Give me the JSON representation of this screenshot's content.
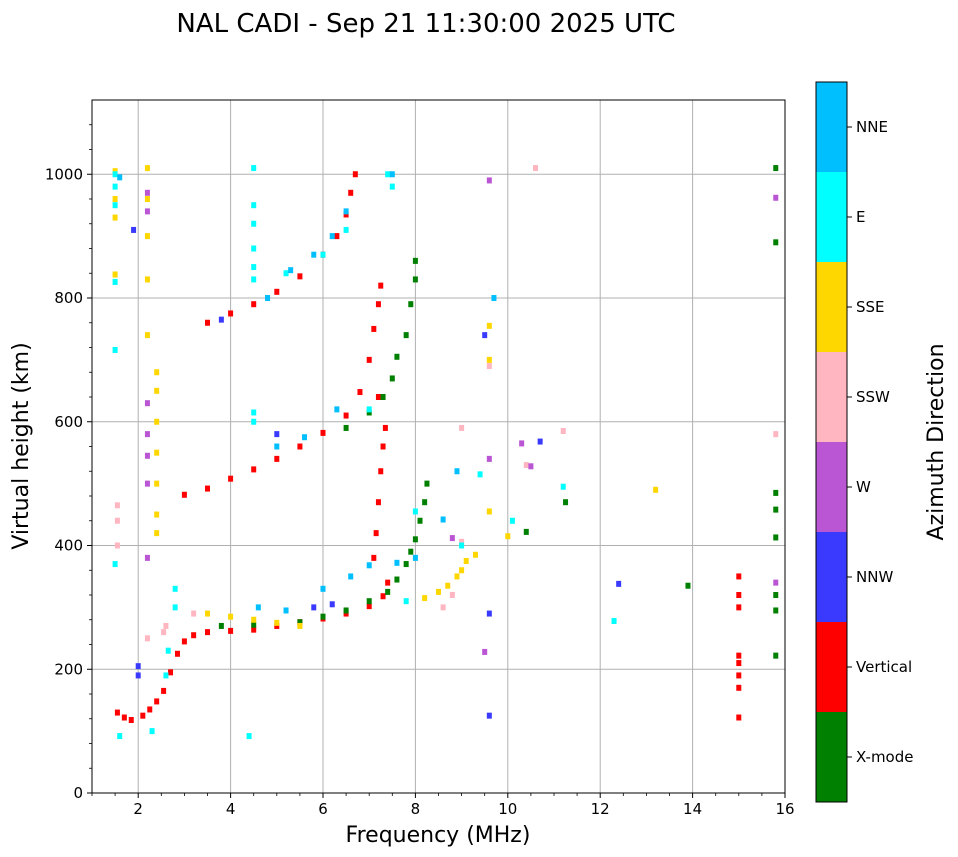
{
  "chart_data": {
    "type": "scatter",
    "title": "NAL CADI - Sep 21 11:30:00 2025 UTC",
    "xlabel": "Frequency (MHz)",
    "ylabel": "Virtual height (km)",
    "xlim": [
      1,
      16
    ],
    "ylim": [
      0,
      1120
    ],
    "x_ticks": [
      2,
      4,
      6,
      8,
      10,
      12,
      14,
      16
    ],
    "y_ticks": [
      0,
      200,
      400,
      600,
      800,
      1000
    ],
    "grid": true,
    "colorbar": {
      "title": "Azimuth Direction",
      "categories": [
        {
          "name": "NNE",
          "color": "#00bfff"
        },
        {
          "name": "E",
          "color": "#00ffff"
        },
        {
          "name": "SSE",
          "color": "#ffd700"
        },
        {
          "name": "SSW",
          "color": "#ffb6c1"
        },
        {
          "name": "W",
          "color": "#ba55d3"
        },
        {
          "name": "NNW",
          "color": "#3a3aff"
        },
        {
          "name": "Vertical",
          "color": "#ff0000"
        },
        {
          "name": "X-mode",
          "color": "#008000"
        }
      ]
    },
    "series": [
      {
        "name": "Vertical",
        "color": "#ff0000",
        "points": [
          [
            1.55,
            130
          ],
          [
            1.7,
            122
          ],
          [
            1.85,
            118
          ],
          [
            2.1,
            125
          ],
          [
            2.25,
            135
          ],
          [
            2.4,
            148
          ],
          [
            2.55,
            165
          ],
          [
            2.7,
            195
          ],
          [
            2.85,
            225
          ],
          [
            3.0,
            245
          ],
          [
            3.2,
            255
          ],
          [
            3.5,
            260
          ],
          [
            4.0,
            262
          ],
          [
            4.5,
            264
          ],
          [
            5.0,
            270
          ],
          [
            5.5,
            276
          ],
          [
            6.0,
            282
          ],
          [
            6.5,
            290
          ],
          [
            7.0,
            302
          ],
          [
            7.3,
            318
          ],
          [
            7.4,
            340
          ],
          [
            3.0,
            482
          ],
          [
            3.5,
            492
          ],
          [
            4.0,
            508
          ],
          [
            4.5,
            523
          ],
          [
            5.0,
            540
          ],
          [
            5.5,
            560
          ],
          [
            6.0,
            582
          ],
          [
            6.5,
            610
          ],
          [
            6.8,
            648
          ],
          [
            7.0,
            700
          ],
          [
            7.1,
            750
          ],
          [
            7.2,
            790
          ],
          [
            7.25,
            820
          ],
          [
            3.5,
            760
          ],
          [
            4.0,
            775
          ],
          [
            4.5,
            790
          ],
          [
            5.0,
            810
          ],
          [
            5.5,
            835
          ],
          [
            6.0,
            870
          ],
          [
            6.3,
            900
          ],
          [
            6.5,
            935
          ],
          [
            6.6,
            970
          ],
          [
            6.7,
            1000
          ],
          [
            7.1,
            380
          ],
          [
            7.15,
            420
          ],
          [
            7.2,
            470
          ],
          [
            7.25,
            520
          ],
          [
            7.3,
            560
          ],
          [
            7.35,
            590
          ],
          [
            7.2,
            640
          ],
          [
            15.0,
            320
          ],
          [
            15.0,
            300
          ],
          [
            15.0,
            350
          ],
          [
            15.0,
            210
          ],
          [
            15.0,
            190
          ],
          [
            15.0,
            170
          ],
          [
            15.0,
            222
          ],
          [
            15.0,
            122
          ]
        ]
      },
      {
        "name": "X-mode",
        "color": "#008000",
        "points": [
          [
            3.8,
            270
          ],
          [
            4.5,
            272
          ],
          [
            5.5,
            276
          ],
          [
            6.0,
            285
          ],
          [
            6.5,
            295
          ],
          [
            7.0,
            310
          ],
          [
            7.4,
            325
          ],
          [
            7.6,
            345
          ],
          [
            7.8,
            370
          ],
          [
            7.9,
            390
          ],
          [
            8.0,
            410
          ],
          [
            8.1,
            440
          ],
          [
            8.2,
            470
          ],
          [
            8.25,
            500
          ],
          [
            6.5,
            590
          ],
          [
            7.0,
            615
          ],
          [
            7.3,
            640
          ],
          [
            7.5,
            670
          ],
          [
            7.6,
            705
          ],
          [
            7.8,
            740
          ],
          [
            7.9,
            790
          ],
          [
            8.0,
            830
          ],
          [
            8.0,
            860
          ],
          [
            15.8,
            1010
          ],
          [
            15.8,
            890
          ],
          [
            15.8,
            485
          ],
          [
            15.8,
            458
          ],
          [
            15.8,
            413
          ],
          [
            15.8,
            320
          ],
          [
            15.8,
            295
          ],
          [
            15.8,
            222
          ],
          [
            13.9,
            335
          ],
          [
            11.25,
            470
          ],
          [
            10.4,
            422
          ]
        ]
      },
      {
        "name": "SSE",
        "color": "#ffd700",
        "points": [
          [
            1.5,
            1005
          ],
          [
            1.5,
            960
          ],
          [
            1.5,
            930
          ],
          [
            1.5,
            838
          ],
          [
            2.2,
            1010
          ],
          [
            2.2,
            960
          ],
          [
            2.2,
            900
          ],
          [
            2.2,
            830
          ],
          [
            2.2,
            740
          ],
          [
            2.4,
            680
          ],
          [
            2.4,
            650
          ],
          [
            2.4,
            600
          ],
          [
            2.4,
            550
          ],
          [
            2.4,
            500
          ],
          [
            2.4,
            450
          ],
          [
            2.4,
            420
          ],
          [
            3.5,
            290
          ],
          [
            4.0,
            285
          ],
          [
            4.5,
            280
          ],
          [
            5.0,
            275
          ],
          [
            5.5,
            270
          ],
          [
            8.2,
            315
          ],
          [
            8.5,
            325
          ],
          [
            8.7,
            335
          ],
          [
            8.9,
            350
          ],
          [
            9.0,
            360
          ],
          [
            9.1,
            375
          ],
          [
            9.3,
            385
          ],
          [
            9.6,
            455
          ],
          [
            9.6,
            700
          ],
          [
            9.6,
            755
          ],
          [
            13.2,
            490
          ],
          [
            10.0,
            415
          ]
        ]
      },
      {
        "name": "SSW",
        "color": "#ffb6c1",
        "points": [
          [
            1.55,
            465
          ],
          [
            1.55,
            440
          ],
          [
            1.55,
            400
          ],
          [
            2.2,
            250
          ],
          [
            2.55,
            260
          ],
          [
            2.6,
            270
          ],
          [
            3.2,
            290
          ],
          [
            8.6,
            300
          ],
          [
            8.8,
            320
          ],
          [
            9.0,
            406
          ],
          [
            9.0,
            590
          ],
          [
            9.6,
            690
          ],
          [
            10.4,
            530
          ],
          [
            11.2,
            585
          ],
          [
            15.8,
            580
          ],
          [
            10.6,
            1010
          ]
        ]
      },
      {
        "name": "W",
        "color": "#ba55d3",
        "points": [
          [
            2.2,
            970
          ],
          [
            2.2,
            940
          ],
          [
            2.2,
            630
          ],
          [
            2.2,
            580
          ],
          [
            2.2,
            545
          ],
          [
            2.2,
            500
          ],
          [
            2.2,
            380
          ],
          [
            9.5,
            228
          ],
          [
            9.6,
            990
          ],
          [
            9.6,
            540
          ],
          [
            10.3,
            565
          ],
          [
            10.5,
            528
          ],
          [
            15.8,
            962
          ],
          [
            15.8,
            340
          ],
          [
            8.8,
            412
          ]
        ]
      },
      {
        "name": "NNW",
        "color": "#3a3aff",
        "points": [
          [
            1.9,
            910
          ],
          [
            2.0,
            205
          ],
          [
            2.0,
            190
          ],
          [
            3.8,
            765
          ],
          [
            5.0,
            580
          ],
          [
            5.8,
            300
          ],
          [
            6.2,
            305
          ],
          [
            9.6,
            290
          ],
          [
            9.6,
            125
          ],
          [
            12.4,
            338
          ],
          [
            10.7,
            568
          ],
          [
            9.5,
            740
          ]
        ]
      },
      {
        "name": "E",
        "color": "#00ffff",
        "points": [
          [
            1.5,
            1000
          ],
          [
            1.5,
            980
          ],
          [
            1.5,
            950
          ],
          [
            1.5,
            826
          ],
          [
            1.5,
            716
          ],
          [
            1.5,
            370
          ],
          [
            1.6,
            92
          ],
          [
            2.3,
            100
          ],
          [
            2.6,
            190
          ],
          [
            2.65,
            230
          ],
          [
            2.8,
            330
          ],
          [
            2.8,
            300
          ],
          [
            4.5,
            1010
          ],
          [
            4.5,
            950
          ],
          [
            4.5,
            920
          ],
          [
            4.5,
            880
          ],
          [
            4.5,
            850
          ],
          [
            4.5,
            830
          ],
          [
            4.5,
            615
          ],
          [
            4.5,
            600
          ],
          [
            4.4,
            92
          ],
          [
            5.2,
            840
          ],
          [
            6.0,
            870
          ],
          [
            6.5,
            910
          ],
          [
            7.0,
            620
          ],
          [
            7.4,
            1000
          ],
          [
            7.5,
            980
          ],
          [
            8.0,
            455
          ],
          [
            9.0,
            400
          ],
          [
            9.4,
            515
          ],
          [
            10.1,
            440
          ],
          [
            11.2,
            495
          ],
          [
            12.3,
            278
          ],
          [
            7.8,
            310
          ]
        ]
      },
      {
        "name": "NNE",
        "color": "#00bfff",
        "points": [
          [
            1.6,
            995
          ],
          [
            4.8,
            800
          ],
          [
            5.3,
            845
          ],
          [
            5.8,
            870
          ],
          [
            6.2,
            900
          ],
          [
            6.5,
            940
          ],
          [
            6.3,
            620
          ],
          [
            5.6,
            575
          ],
          [
            5.0,
            560
          ],
          [
            4.6,
            300
          ],
          [
            5.2,
            295
          ],
          [
            6.0,
            330
          ],
          [
            6.6,
            350
          ],
          [
            7.0,
            368
          ],
          [
            7.6,
            372
          ],
          [
            8.6,
            442
          ],
          [
            9.7,
            800
          ],
          [
            7.5,
            1000
          ],
          [
            8.0,
            380
          ],
          [
            8.9,
            520
          ]
        ]
      }
    ]
  }
}
